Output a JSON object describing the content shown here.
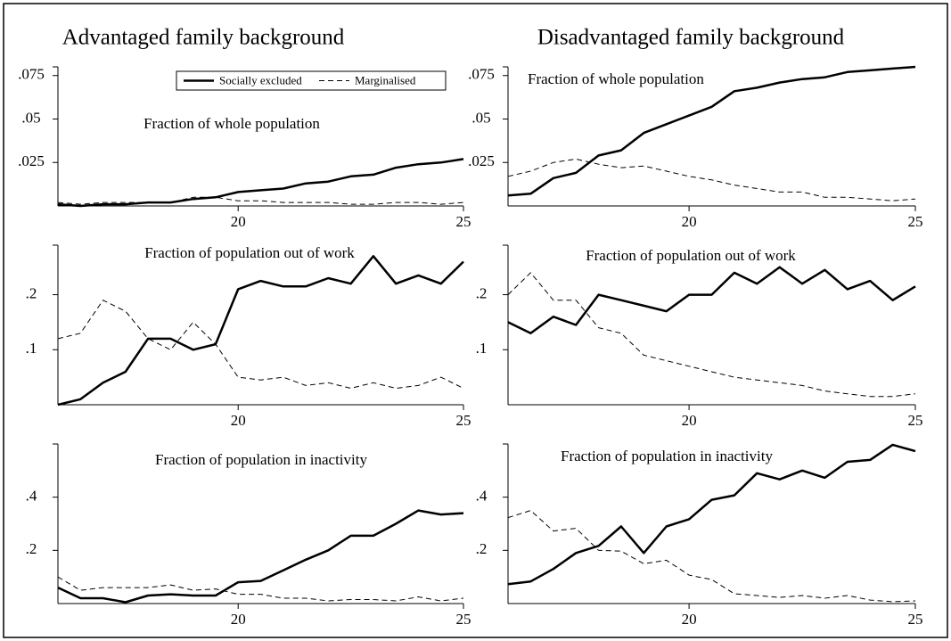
{
  "chart_data": [
    {
      "type": "line",
      "title": "Advantaged family background",
      "annotation": "Fraction of whole population",
      "x": [
        16,
        16.5,
        17,
        17.5,
        18,
        18.5,
        19,
        19.5,
        20,
        20.5,
        21,
        21.5,
        22,
        22.5,
        23,
        23.5,
        24,
        24.5,
        25
      ],
      "xlim": [
        16,
        25
      ],
      "xticks": [
        20,
        25
      ],
      "ylim": [
        0,
        0.08
      ],
      "yticks": [
        {
          "value": 0.025,
          "label": ".025"
        },
        {
          "value": 0.05,
          "label": ".05"
        },
        {
          "value": 0.075,
          "label": ".075"
        }
      ],
      "legend": "top-right",
      "series": [
        {
          "name": "Socially excluded",
          "color": "#000000",
          "style": "solid",
          "values": [
            0.001,
            0,
            0.001,
            0.001,
            0.002,
            0.002,
            0.004,
            0.005,
            0.008,
            0.009,
            0.01,
            0.013,
            0.014,
            0.017,
            0.018,
            0.022,
            0.024,
            0.025,
            0.027
          ]
        },
        {
          "name": "Marginalised",
          "color": "#000000",
          "style": "dashed",
          "values": [
            0.002,
            0.001,
            0.002,
            0.002,
            0.002,
            0.002,
            0.005,
            0.005,
            0.003,
            0.003,
            0.002,
            0.002,
            0.002,
            0.001,
            0.001,
            0.002,
            0.002,
            0.001,
            0.002
          ]
        }
      ]
    },
    {
      "type": "line",
      "title": "Disadvantaged family background",
      "annotation": "Fraction of whole population",
      "x": [
        16,
        16.5,
        17,
        17.5,
        18,
        18.5,
        19,
        19.5,
        20,
        20.5,
        21,
        21.5,
        22,
        22.5,
        23,
        23.5,
        24,
        24.5,
        25
      ],
      "xlim": [
        16,
        25
      ],
      "xticks": [
        20,
        25
      ],
      "ylim": [
        0,
        0.08
      ],
      "yticks": [
        {
          "value": 0.025,
          "label": ".025"
        },
        {
          "value": 0.05,
          "label": ".05"
        },
        {
          "value": 0.075,
          "label": ".075"
        }
      ],
      "series": [
        {
          "color": "#000000",
          "style": "solid",
          "values": [
            0.006,
            0.007,
            0.016,
            0.019,
            0.029,
            0.032,
            0.042,
            0.047,
            0.052,
            0.057,
            0.066,
            0.068,
            0.071,
            0.073,
            0.074,
            0.077,
            0.078,
            0.079,
            0.08
          ]
        },
        {
          "color": "#000000",
          "style": "dashed",
          "values": [
            0.017,
            0.02,
            0.025,
            0.027,
            0.024,
            0.022,
            0.023,
            0.02,
            0.017,
            0.015,
            0.012,
            0.01,
            0.008,
            0.008,
            0.005,
            0.005,
            0.004,
            0.003,
            0.004
          ]
        }
      ]
    },
    {
      "type": "line",
      "annotation": "Fraction of population out of work",
      "x": [
        16,
        16.5,
        17,
        17.5,
        18,
        18.5,
        19,
        19.5,
        20,
        20.5,
        21,
        21.5,
        22,
        22.5,
        23,
        23.5,
        24,
        24.5,
        25
      ],
      "xlim": [
        16,
        25
      ],
      "xticks": [
        20,
        25
      ],
      "ylim": [
        0,
        0.29
      ],
      "yticks": [
        {
          "value": 0.1,
          "label": ".1"
        },
        {
          "value": 0.2,
          "label": ".2"
        }
      ],
      "series": [
        {
          "color": "#000000",
          "style": "solid",
          "values": [
            0,
            0.01,
            0.04,
            0.06,
            0.12,
            0.12,
            0.1,
            0.11,
            0.21,
            0.225,
            0.215,
            0.215,
            0.23,
            0.22,
            0.27,
            0.22,
            0.235,
            0.22,
            0.26
          ]
        },
        {
          "color": "#000000",
          "style": "dashed",
          "values": [
            0.12,
            0.13,
            0.19,
            0.17,
            0.12,
            0.1,
            0.15,
            0.11,
            0.05,
            0.045,
            0.05,
            0.035,
            0.04,
            0.03,
            0.04,
            0.03,
            0.035,
            0.05,
            0.03
          ]
        }
      ]
    },
    {
      "type": "line",
      "annotation": "Fraction of population out of work",
      "x": [
        16,
        16.5,
        17,
        17.5,
        18,
        18.5,
        19,
        19.5,
        20,
        20.5,
        21,
        21.5,
        22,
        22.5,
        23,
        23.5,
        24,
        24.5,
        25
      ],
      "xlim": [
        16,
        25
      ],
      "xticks": [
        20,
        25
      ],
      "ylim": [
        0,
        0.29
      ],
      "yticks": [
        {
          "value": 0.1,
          "label": ".1"
        },
        {
          "value": 0.2,
          "label": ".2"
        }
      ],
      "series": [
        {
          "color": "#000000",
          "style": "solid",
          "values": [
            0.15,
            0.13,
            0.16,
            0.145,
            0.2,
            0.19,
            0.18,
            0.17,
            0.2,
            0.2,
            0.24,
            0.22,
            0.25,
            0.22,
            0.245,
            0.21,
            0.225,
            0.19,
            0.215
          ]
        },
        {
          "color": "#000000",
          "style": "dashed",
          "values": [
            0.2,
            0.24,
            0.19,
            0.19,
            0.14,
            0.13,
            0.09,
            0.08,
            0.07,
            0.06,
            0.05,
            0.045,
            0.04,
            0.035,
            0.025,
            0.02,
            0.015,
            0.015,
            0.02
          ]
        }
      ]
    },
    {
      "type": "line",
      "annotation": "Fraction of population in inactivity",
      "x": [
        16,
        16.5,
        17,
        17.5,
        18,
        18.5,
        19,
        19.5,
        20,
        20.5,
        21,
        21.5,
        22,
        22.5,
        23,
        23.5,
        24,
        24.5,
        25
      ],
      "xlim": [
        16,
        25
      ],
      "xticks": [
        20,
        25
      ],
      "ylim": [
        0,
        0.6
      ],
      "yticks": [
        {
          "value": 0.2,
          "label": ".2"
        },
        {
          "value": 0.4,
          "label": ".4"
        }
      ],
      "series": [
        {
          "color": "#000000",
          "style": "solid",
          "values": [
            0.06,
            0.02,
            0.02,
            0.005,
            0.03,
            0.035,
            0.03,
            0.03,
            0.08,
            0.085,
            0.125,
            0.165,
            0.2,
            0.255,
            0.255,
            0.3,
            0.35,
            0.335,
            0.34
          ]
        },
        {
          "color": "#000000",
          "style": "dashed",
          "values": [
            0.1,
            0.05,
            0.06,
            0.06,
            0.06,
            0.07,
            0.05,
            0.055,
            0.035,
            0.035,
            0.02,
            0.02,
            0.01,
            0.015,
            0.015,
            0.01,
            0.025,
            0.01,
            0.02
          ]
        }
      ]
    },
    {
      "type": "line",
      "annotation": "Fraction of population in inactivity",
      "x": [
        16,
        16.5,
        17,
        17.5,
        18,
        18.5,
        19,
        19.5,
        20,
        20.5,
        21,
        21.5,
        22,
        22.5,
        23,
        23.5,
        24,
        24.5,
        25
      ],
      "xlim": [
        16,
        25
      ],
      "xticks": [
        20,
        25
      ],
      "ylim": [
        0,
        0.6
      ],
      "yticks": [
        {
          "value": 0.2,
          "label": ".2"
        },
        {
          "value": 0.4,
          "label": ".4"
        }
      ],
      "series": [
        {
          "color": "#000000",
          "style": "solid",
          "values": [
            0.073,
            0.083,
            0.13,
            0.19,
            0.217,
            0.29,
            0.19,
            0.29,
            0.317,
            0.39,
            0.407,
            0.49,
            0.467,
            0.5,
            0.473,
            0.533,
            0.54,
            0.597,
            0.573
          ]
        },
        {
          "color": "#000000",
          "style": "dashed",
          "values": [
            0.323,
            0.35,
            0.273,
            0.283,
            0.2,
            0.197,
            0.15,
            0.163,
            0.107,
            0.09,
            0.037,
            0.03,
            0.023,
            0.03,
            0.02,
            0.03,
            0.013,
            0.007,
            0.01
          ]
        }
      ]
    }
  ]
}
